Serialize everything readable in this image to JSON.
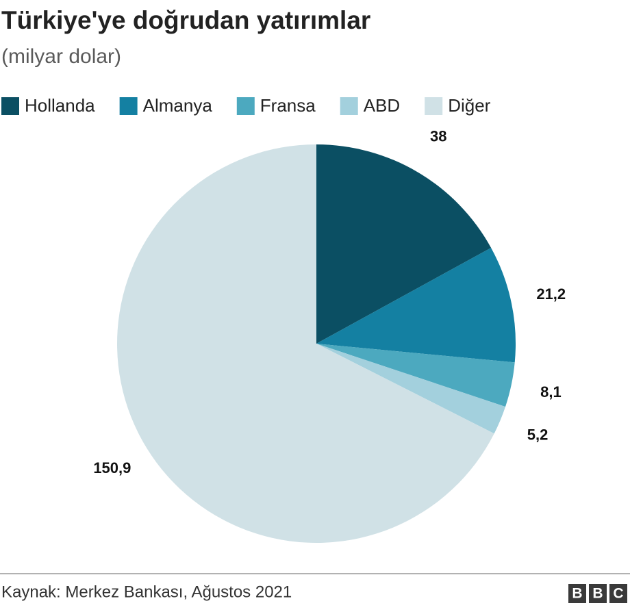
{
  "chart_data": {
    "type": "pie",
    "title": "Türkiye'ye doğrudan yatırımlar",
    "subtitle": "(milyar dolar)",
    "categories": [
      "Hollanda",
      "Almanya",
      "Fransa",
      "ABD",
      "Diğer"
    ],
    "values": [
      38,
      21.2,
      8.1,
      5.2,
      150.9
    ],
    "value_labels": [
      "38",
      "21,2",
      "8,1",
      "5,2",
      "150,9"
    ],
    "colors": [
      "#0b4f63",
      "#1480a2",
      "#4ca9bf",
      "#a3d0dd",
      "#d0e1e6"
    ],
    "source": "Kaynak: Merkez Bankası, Ağustos 2021",
    "logo": [
      "B",
      "B",
      "C"
    ]
  }
}
